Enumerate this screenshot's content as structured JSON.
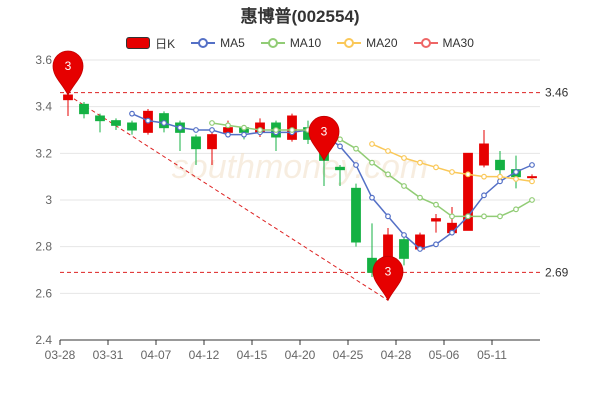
{
  "chart_data": {
    "type": "candlestick",
    "title": "惠博普(002554)",
    "legend": [
      {
        "name": "日K",
        "color": "#e60000"
      },
      {
        "name": "MA5",
        "color": "#5470c6"
      },
      {
        "name": "MA10",
        "color": "#91cc75"
      },
      {
        "name": "MA20",
        "color": "#fac858"
      },
      {
        "name": "MA30",
        "color": "#ee6666"
      }
    ],
    "legend_position": "top",
    "ylim": [
      2.4,
      3.6
    ],
    "yticks": [
      "2.4",
      "2.6",
      "2.8",
      "3",
      "3.2",
      "3.4",
      "3.6"
    ],
    "x_tick_labels": [
      "03-28",
      "03-31",
      "04-07",
      "04-12",
      "04-15",
      "04-20",
      "04-25",
      "04-28",
      "05-06",
      "05-11"
    ],
    "grid": true,
    "up_color": "#e60000",
    "down_color": "#14b143",
    "candles": [
      {
        "open": 3.43,
        "close": 3.45,
        "low": 3.36,
        "high": 3.46
      },
      {
        "open": 3.41,
        "close": 3.37,
        "low": 3.35,
        "high": 3.42
      },
      {
        "open": 3.36,
        "close": 3.34,
        "low": 3.29,
        "high": 3.37
      },
      {
        "open": 3.34,
        "close": 3.32,
        "low": 3.3,
        "high": 3.35
      },
      {
        "open": 3.33,
        "close": 3.3,
        "low": 3.28,
        "high": 3.34
      },
      {
        "open": 3.29,
        "close": 3.38,
        "low": 3.28,
        "high": 3.39
      },
      {
        "open": 3.37,
        "close": 3.31,
        "low": 3.29,
        "high": 3.38
      },
      {
        "open": 3.33,
        "close": 3.29,
        "low": 3.21,
        "high": 3.34
      },
      {
        "open": 3.27,
        "close": 3.22,
        "low": 3.15,
        "high": 3.28
      },
      {
        "open": 3.22,
        "close": 3.28,
        "low": 3.15,
        "high": 3.29
      },
      {
        "open": 3.29,
        "close": 3.31,
        "low": 3.27,
        "high": 3.34
      },
      {
        "open": 3.31,
        "close": 3.29,
        "low": 3.26,
        "high": 3.32
      },
      {
        "open": 3.29,
        "close": 3.33,
        "low": 3.27,
        "high": 3.35
      },
      {
        "open": 3.33,
        "close": 3.27,
        "low": 3.21,
        "high": 3.34
      },
      {
        "open": 3.26,
        "close": 3.36,
        "low": 3.25,
        "high": 3.37
      },
      {
        "open": 3.31,
        "close": 3.26,
        "low": 3.24,
        "high": 3.34
      },
      {
        "open": 3.27,
        "close": 3.17,
        "low": 3.06,
        "high": 3.29
      },
      {
        "open": 3.14,
        "close": 3.13,
        "low": 3.06,
        "high": 3.15
      },
      {
        "open": 3.05,
        "close": 2.82,
        "low": 2.8,
        "high": 3.07
      },
      {
        "open": 2.75,
        "close": 2.69,
        "low": 2.67,
        "high": 2.9
      },
      {
        "open": 2.69,
        "close": 2.85,
        "low": 2.57,
        "high": 2.88
      },
      {
        "open": 2.83,
        "close": 2.75,
        "low": 2.72,
        "high": 2.84
      },
      {
        "open": 2.79,
        "close": 2.85,
        "low": 2.78,
        "high": 2.86
      },
      {
        "open": 2.91,
        "close": 2.92,
        "low": 2.86,
        "high": 2.94
      },
      {
        "open": 2.86,
        "close": 2.9,
        "low": 2.85,
        "high": 2.97
      },
      {
        "open": 2.87,
        "close": 3.2,
        "low": 2.87,
        "high": 3.2
      },
      {
        "open": 3.15,
        "close": 3.24,
        "low": 3.14,
        "high": 3.3
      },
      {
        "open": 3.17,
        "close": 3.13,
        "low": 3.1,
        "high": 3.21
      },
      {
        "open": 3.13,
        "close": 3.1,
        "low": 3.05,
        "high": 3.19
      },
      {
        "open": 3.1,
        "close": 3.1,
        "low": 3.08,
        "high": 3.11
      }
    ],
    "series": [
      {
        "name": "MA5",
        "color": "#5470c6",
        "values": [
          null,
          null,
          null,
          null,
          3.37,
          3.34,
          3.33,
          3.31,
          3.3,
          3.3,
          3.28,
          3.28,
          3.29,
          3.29,
          3.29,
          3.3,
          3.28,
          3.23,
          3.15,
          3.01,
          2.93,
          2.85,
          2.79,
          2.81,
          2.86,
          2.93,
          3.02,
          3.08,
          3.12,
          3.15
        ]
      },
      {
        "name": "MA10",
        "color": "#91cc75",
        "values": [
          null,
          null,
          null,
          null,
          null,
          null,
          null,
          null,
          null,
          3.33,
          3.32,
          3.31,
          3.3,
          3.3,
          3.3,
          3.3,
          3.29,
          3.26,
          3.22,
          3.16,
          3.11,
          3.06,
          3.01,
          2.98,
          2.93,
          2.93,
          2.93,
          2.93,
          2.96,
          3.0
        ]
      },
      {
        "name": "MA20",
        "color": "#fac858",
        "values": [
          null,
          null,
          null,
          null,
          null,
          null,
          null,
          null,
          null,
          null,
          null,
          null,
          null,
          null,
          null,
          null,
          null,
          null,
          null,
          3.24,
          3.21,
          3.18,
          3.16,
          3.14,
          3.12,
          3.11,
          3.1,
          3.1,
          3.09,
          3.08
        ]
      },
      {
        "name": "MA30",
        "color": "#ee6666",
        "values": []
      }
    ],
    "mark_lines": [
      {
        "label": "3.46",
        "value": 3.46
      },
      {
        "label": "2.69",
        "value": 2.69
      }
    ],
    "mark_points": [
      {
        "label": "3",
        "index": 0,
        "value": 3.45
      },
      {
        "label": "3",
        "index": 16,
        "value": 3.17
      },
      {
        "label": "3",
        "index": 20,
        "value": 2.57
      }
    ],
    "trend_line": {
      "from_index": 0,
      "from_value": 3.45,
      "to_index": 20,
      "to_value": 2.57
    },
    "watermark": "southmoney.com"
  }
}
